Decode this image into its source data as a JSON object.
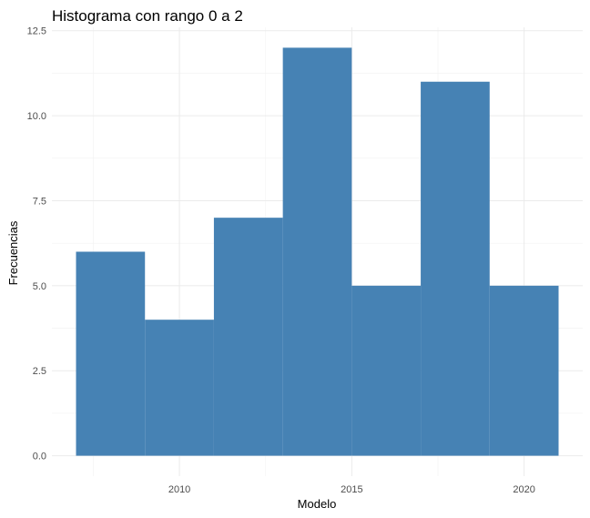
{
  "chart_data": {
    "type": "bar",
    "title": "Histograma con rango 0 a 2",
    "xlabel": "Modelo",
    "ylabel": "Frecuencias",
    "bar_color": "#4682b4",
    "bins": [
      {
        "x0": 2007,
        "x1": 2009,
        "count": 6
      },
      {
        "x0": 2009,
        "x1": 2011,
        "count": 4
      },
      {
        "x0": 2011,
        "x1": 2013,
        "count": 7
      },
      {
        "x0": 2013,
        "x1": 2015,
        "count": 12
      },
      {
        "x0": 2015,
        "x1": 2017,
        "count": 5
      },
      {
        "x0": 2017,
        "x1": 2019,
        "count": 11
      },
      {
        "x0": 2019,
        "x1": 2021,
        "count": 5
      }
    ],
    "xlim": [
      2006.3,
      2021.7
    ],
    "ylim": [
      -0.6,
      12.6
    ],
    "x_ticks": [
      2010,
      2015,
      2020
    ],
    "x_tick_labels": [
      "2010",
      "2015",
      "2020"
    ],
    "y_ticks": [
      0,
      2.5,
      5,
      7.5,
      10,
      12.5
    ],
    "y_tick_labels": [
      "0.0",
      "2.5",
      "5.0",
      "7.5",
      "10.0",
      "12.5"
    ],
    "grid": true,
    "legend": "none"
  }
}
